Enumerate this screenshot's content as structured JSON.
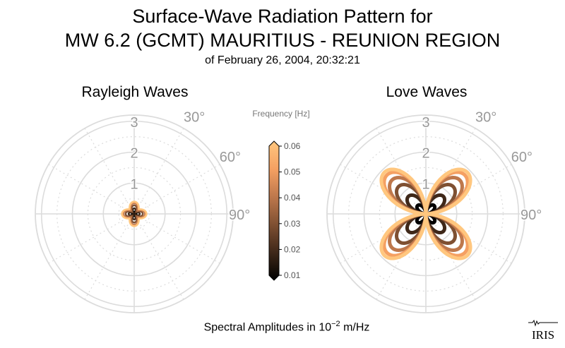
{
  "title": {
    "line1": "Surface-Wave Radiation Pattern for",
    "line2": "MW 6.2 (GCMT) MAURITIUS - REUNION REGION",
    "line3": "of February 26, 2004, 20:32:21"
  },
  "footer": {
    "prefix": "Spectral Amplitudes in 10",
    "exponent": "−2",
    "suffix": " m/Hz"
  },
  "logo": {
    "text": "IRIS"
  },
  "colorbar": {
    "label": "Frequency [Hz]",
    "ticks": [
      "0.06",
      "0.05",
      "0.04",
      "0.03",
      "0.02",
      "0.01"
    ],
    "min": 0.01,
    "max": 0.06,
    "colormap": "copper"
  },
  "chart_data": [
    {
      "type": "polar-line",
      "panel": "rayleigh",
      "title": "Rayleigh Waves",
      "r_ticks": [
        "1",
        "2",
        "3"
      ],
      "r_max": 3.2,
      "angle_ticks": [
        "30°",
        "60°",
        "90°"
      ],
      "grid": true,
      "series": [
        {
          "frequency": 0.01,
          "lobes": 4,
          "rotation_deg": 0,
          "r_min": 0.0,
          "r_max": 0.08,
          "color": "#000000"
        },
        {
          "frequency": 0.02,
          "lobes": 4,
          "rotation_deg": 0,
          "r_min": 0.04,
          "r_max": 0.18,
          "color": "#3f2819"
        },
        {
          "frequency": 0.03,
          "lobes": 4,
          "rotation_deg": 0,
          "r_min": 0.08,
          "r_max": 0.28,
          "color": "#7f5032"
        },
        {
          "frequency": 0.04,
          "lobes": 4,
          "rotation_deg": 0,
          "r_min": 0.14,
          "r_max": 0.35,
          "color": "#be784c"
        },
        {
          "frequency": 0.05,
          "lobes": 4,
          "rotation_deg": 0,
          "r_min": 0.2,
          "r_max": 0.38,
          "color": "#f5a062"
        },
        {
          "frequency": 0.06,
          "lobes": 4,
          "rotation_deg": 0,
          "r_min": 0.22,
          "r_max": 0.4,
          "color": "#ffc77f"
        }
      ]
    },
    {
      "type": "polar-line",
      "panel": "love",
      "title": "Love Waves",
      "r_ticks": [
        "1",
        "2",
        "3"
      ],
      "r_max": 3.2,
      "angle_ticks": [
        "30°",
        "60°",
        "90°"
      ],
      "grid": true,
      "series": [
        {
          "frequency": 0.01,
          "lobes": 4,
          "rotation_deg": 45,
          "r_min": 0.0,
          "r_max": 0.38,
          "color": "#000000"
        },
        {
          "frequency": 0.02,
          "lobes": 4,
          "rotation_deg": 45,
          "r_min": 0.0,
          "r_max": 0.8,
          "color": "#3f2819"
        },
        {
          "frequency": 0.03,
          "lobes": 4,
          "rotation_deg": 45,
          "r_min": 0.0,
          "r_max": 1.25,
          "color": "#7f5032"
        },
        {
          "frequency": 0.04,
          "lobes": 4,
          "rotation_deg": 45,
          "r_min": 0.0,
          "r_max": 1.55,
          "color": "#be784c"
        },
        {
          "frequency": 0.05,
          "lobes": 4,
          "rotation_deg": 45,
          "r_min": 0.0,
          "r_max": 1.78,
          "color": "#f5a062"
        },
        {
          "frequency": 0.06,
          "lobes": 4,
          "rotation_deg": 45,
          "r_min": 0.0,
          "r_max": 1.9,
          "color": "#ffc77f"
        }
      ]
    }
  ]
}
